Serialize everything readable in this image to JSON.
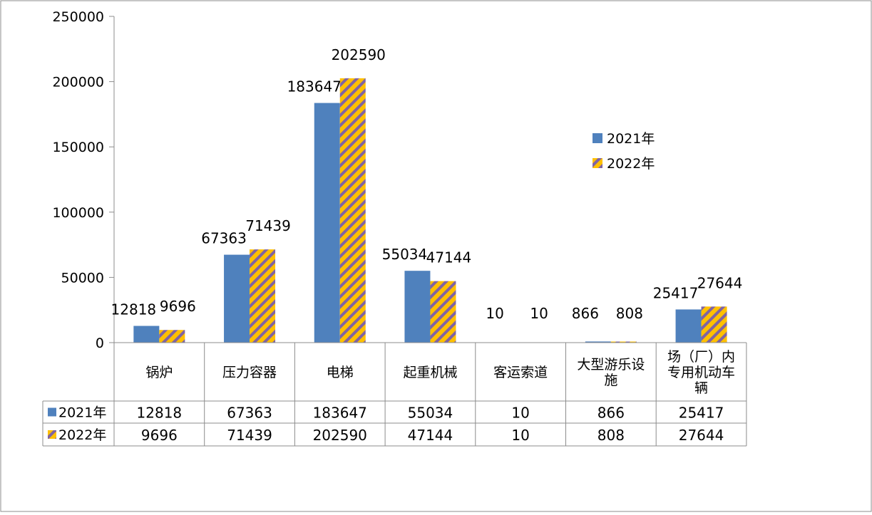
{
  "chart_data": {
    "type": "bar",
    "title": "",
    "xlabel": "",
    "ylabel": "",
    "ylim": [
      0,
      250000
    ],
    "yticks": [
      0,
      50000,
      100000,
      150000,
      200000,
      250000
    ],
    "ytick_labels": [
      "0",
      "50000",
      "100000",
      "150000",
      "200000",
      "250000"
    ],
    "categories": [
      "锅炉",
      "压力容器",
      "电梯",
      "起重机械",
      "客运索道",
      "大型游乐设施",
      "场（厂）内专用机动车辆"
    ],
    "category_lines": [
      [
        "锅炉"
      ],
      [
        "压力容器"
      ],
      [
        "电梯"
      ],
      [
        "起重机械"
      ],
      [
        "客运索道"
      ],
      [
        "大型游乐设",
        "施"
      ],
      [
        "场（厂）内",
        "专用机动车",
        "辆"
      ]
    ],
    "series": [
      {
        "name": "2021年",
        "values": [
          12818,
          67363,
          183647,
          55034,
          10,
          866,
          25417
        ],
        "labels": [
          "12818",
          "67363",
          "183647",
          "55034",
          "10",
          "866",
          "25417"
        ],
        "color": "#4F81BD"
      },
      {
        "name": "2022年",
        "values": [
          9696,
          71439,
          202590,
          47144,
          10,
          808,
          27644
        ],
        "labels": [
          "9696",
          "71439",
          "202590",
          "47144",
          "10",
          "808",
          "27644"
        ],
        "color": "#FFC000",
        "stripe_color": "#8064A2"
      }
    ],
    "legend_position": "right-middle",
    "data_table": true
  }
}
